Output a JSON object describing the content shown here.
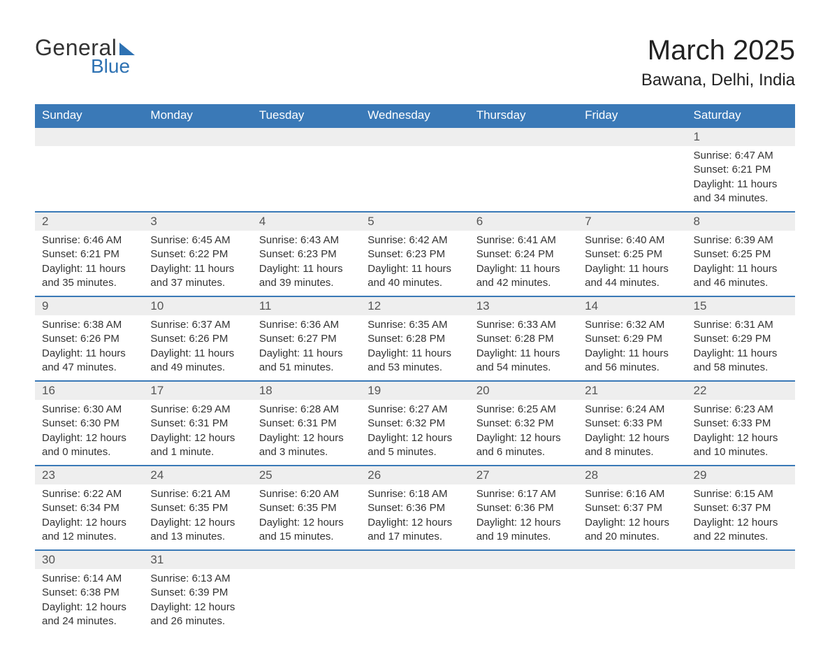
{
  "brand": {
    "word1": "General",
    "word2": "Blue",
    "accent_color": "#2e72b3"
  },
  "title": {
    "month_year": "March 2025",
    "location": "Bawana, Delhi, India"
  },
  "colors": {
    "header_bg": "#3a79b7",
    "header_text": "#ffffff",
    "daynum_bg": "#eeeeee",
    "row_border": "#3a79b7",
    "text": "#333333",
    "page_bg": "#ffffff"
  },
  "weekdays": [
    "Sunday",
    "Monday",
    "Tuesday",
    "Wednesday",
    "Thursday",
    "Friday",
    "Saturday"
  ],
  "labels": {
    "sunrise": "Sunrise",
    "sunset": "Sunset",
    "daylight": "Daylight"
  },
  "layout": {
    "leading_blanks": 6,
    "num_days": 31,
    "columns": 7
  },
  "days": [
    {
      "n": 1,
      "sunrise": "6:47 AM",
      "sunset": "6:21 PM",
      "daylight": "11 hours and 34 minutes."
    },
    {
      "n": 2,
      "sunrise": "6:46 AM",
      "sunset": "6:21 PM",
      "daylight": "11 hours and 35 minutes."
    },
    {
      "n": 3,
      "sunrise": "6:45 AM",
      "sunset": "6:22 PM",
      "daylight": "11 hours and 37 minutes."
    },
    {
      "n": 4,
      "sunrise": "6:43 AM",
      "sunset": "6:23 PM",
      "daylight": "11 hours and 39 minutes."
    },
    {
      "n": 5,
      "sunrise": "6:42 AM",
      "sunset": "6:23 PM",
      "daylight": "11 hours and 40 minutes."
    },
    {
      "n": 6,
      "sunrise": "6:41 AM",
      "sunset": "6:24 PM",
      "daylight": "11 hours and 42 minutes."
    },
    {
      "n": 7,
      "sunrise": "6:40 AM",
      "sunset": "6:25 PM",
      "daylight": "11 hours and 44 minutes."
    },
    {
      "n": 8,
      "sunrise": "6:39 AM",
      "sunset": "6:25 PM",
      "daylight": "11 hours and 46 minutes."
    },
    {
      "n": 9,
      "sunrise": "6:38 AM",
      "sunset": "6:26 PM",
      "daylight": "11 hours and 47 minutes."
    },
    {
      "n": 10,
      "sunrise": "6:37 AM",
      "sunset": "6:26 PM",
      "daylight": "11 hours and 49 minutes."
    },
    {
      "n": 11,
      "sunrise": "6:36 AM",
      "sunset": "6:27 PM",
      "daylight": "11 hours and 51 minutes."
    },
    {
      "n": 12,
      "sunrise": "6:35 AM",
      "sunset": "6:28 PM",
      "daylight": "11 hours and 53 minutes."
    },
    {
      "n": 13,
      "sunrise": "6:33 AM",
      "sunset": "6:28 PM",
      "daylight": "11 hours and 54 minutes."
    },
    {
      "n": 14,
      "sunrise": "6:32 AM",
      "sunset": "6:29 PM",
      "daylight": "11 hours and 56 minutes."
    },
    {
      "n": 15,
      "sunrise": "6:31 AM",
      "sunset": "6:29 PM",
      "daylight": "11 hours and 58 minutes."
    },
    {
      "n": 16,
      "sunrise": "6:30 AM",
      "sunset": "6:30 PM",
      "daylight": "12 hours and 0 minutes."
    },
    {
      "n": 17,
      "sunrise": "6:29 AM",
      "sunset": "6:31 PM",
      "daylight": "12 hours and 1 minute."
    },
    {
      "n": 18,
      "sunrise": "6:28 AM",
      "sunset": "6:31 PM",
      "daylight": "12 hours and 3 minutes."
    },
    {
      "n": 19,
      "sunrise": "6:27 AM",
      "sunset": "6:32 PM",
      "daylight": "12 hours and 5 minutes."
    },
    {
      "n": 20,
      "sunrise": "6:25 AM",
      "sunset": "6:32 PM",
      "daylight": "12 hours and 6 minutes."
    },
    {
      "n": 21,
      "sunrise": "6:24 AM",
      "sunset": "6:33 PM",
      "daylight": "12 hours and 8 minutes."
    },
    {
      "n": 22,
      "sunrise": "6:23 AM",
      "sunset": "6:33 PM",
      "daylight": "12 hours and 10 minutes."
    },
    {
      "n": 23,
      "sunrise": "6:22 AM",
      "sunset": "6:34 PM",
      "daylight": "12 hours and 12 minutes."
    },
    {
      "n": 24,
      "sunrise": "6:21 AM",
      "sunset": "6:35 PM",
      "daylight": "12 hours and 13 minutes."
    },
    {
      "n": 25,
      "sunrise": "6:20 AM",
      "sunset": "6:35 PM",
      "daylight": "12 hours and 15 minutes."
    },
    {
      "n": 26,
      "sunrise": "6:18 AM",
      "sunset": "6:36 PM",
      "daylight": "12 hours and 17 minutes."
    },
    {
      "n": 27,
      "sunrise": "6:17 AM",
      "sunset": "6:36 PM",
      "daylight": "12 hours and 19 minutes."
    },
    {
      "n": 28,
      "sunrise": "6:16 AM",
      "sunset": "6:37 PM",
      "daylight": "12 hours and 20 minutes."
    },
    {
      "n": 29,
      "sunrise": "6:15 AM",
      "sunset": "6:37 PM",
      "daylight": "12 hours and 22 minutes."
    },
    {
      "n": 30,
      "sunrise": "6:14 AM",
      "sunset": "6:38 PM",
      "daylight": "12 hours and 24 minutes."
    },
    {
      "n": 31,
      "sunrise": "6:13 AM",
      "sunset": "6:39 PM",
      "daylight": "12 hours and 26 minutes."
    }
  ]
}
